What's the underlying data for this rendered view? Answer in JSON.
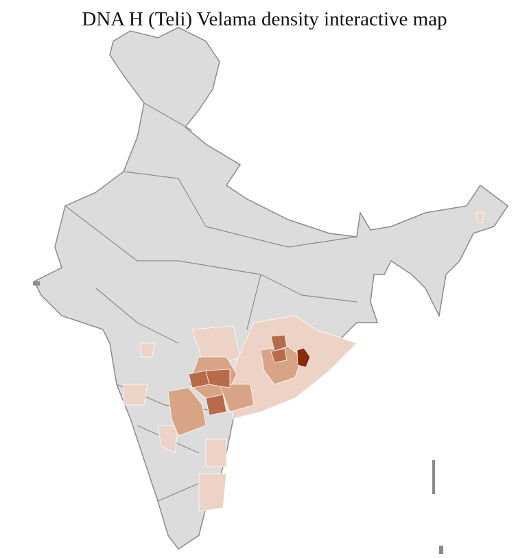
{
  "title": "DNA H (Teli) Velama density interactive map",
  "colors": {
    "no_data": "#dcdcdc",
    "border": "#8a8a8a",
    "district_line": "#ffffff",
    "low": "#ecd3c6",
    "medium": "#d9a386",
    "high": "#b86b49",
    "highest": "#8b2a05"
  }
}
